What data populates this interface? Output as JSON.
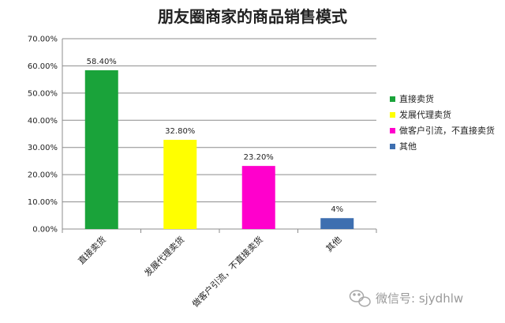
{
  "chart_data": {
    "type": "bar",
    "title": "朋友圈商家的商品销售模式",
    "xlabel": "",
    "ylabel": "",
    "categories": [
      "直接卖货",
      "发展代理卖货",
      "做客户引流，不直接卖货",
      "其他"
    ],
    "values": [
      58.4,
      32.8,
      23.2,
      4
    ],
    "data_labels": [
      "58.40%",
      "32.80%",
      "23.20%",
      "4%"
    ],
    "colors": [
      "#1aa33a",
      "#ffff00",
      "#ff00cc",
      "#3e6fb0"
    ],
    "ylim": [
      0,
      70
    ],
    "yticks": [
      0,
      10,
      20,
      30,
      40,
      50,
      60,
      70
    ],
    "ytick_labels": [
      "0.00%",
      "10.00%",
      "20.00%",
      "30.00%",
      "40.00%",
      "50.00%",
      "60.00%",
      "70.00%"
    ],
    "grid": true,
    "legend_position": "right",
    "legend": [
      "直接卖货",
      "发展代理卖货",
      "做客户引流，不直接卖货",
      "其他"
    ]
  },
  "watermark": {
    "text": "微信号: sjydhlw",
    "icon": "wechat-icon"
  }
}
